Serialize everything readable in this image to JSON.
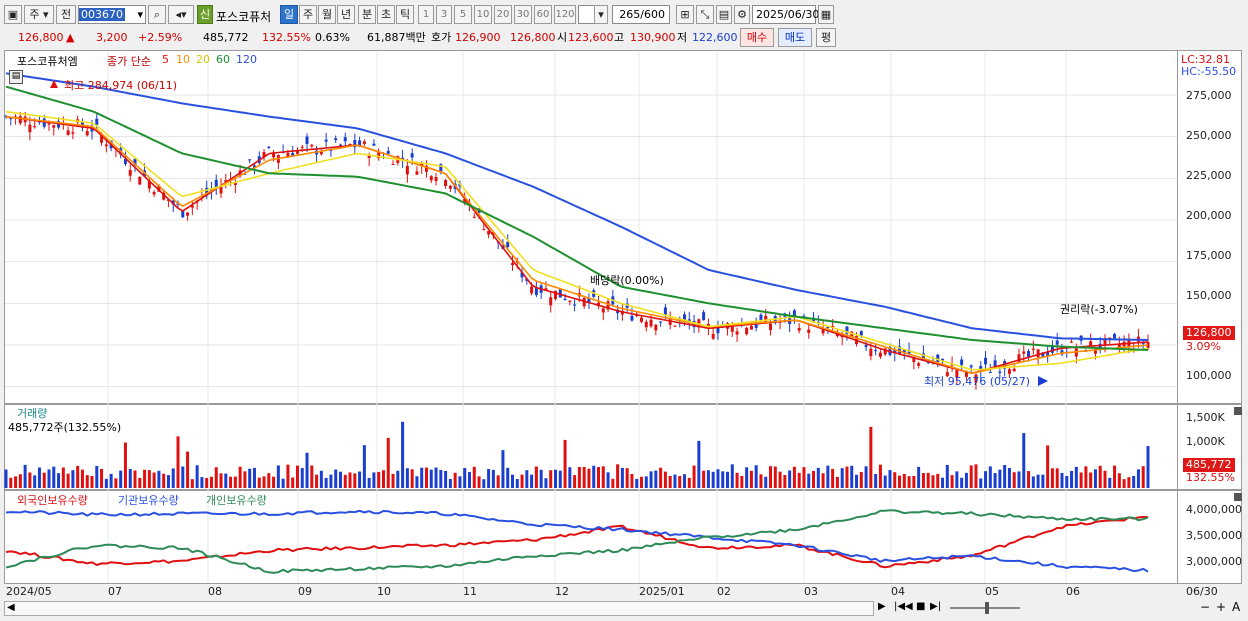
{
  "toolbar": {
    "period_buttons": [
      "주",
      "전"
    ],
    "code_value": "003670",
    "chart_type_badge": "신",
    "stock_name": "포스코퓨처",
    "interval_tabs": [
      "일",
      "주",
      "월",
      "년",
      "분",
      "초",
      "틱"
    ],
    "active_tab": "일",
    "minute_options": [
      "1",
      "3",
      "5",
      "10",
      "20",
      "30",
      "60",
      "120"
    ],
    "count_display": "265",
    "count_total": "/600",
    "date_value": "2025/06/30"
  },
  "quote": {
    "price": "126,800",
    "arrow": "▲",
    "change": "3,200",
    "change_pct": "+2.59%",
    "volume": "485,772",
    "volume_ratio": "132.55%",
    "turnover_pct": "0.63%",
    "amount": "61,887백만",
    "ask_label": "호가",
    "bid1": "126,900",
    "bid2": "126,800",
    "open_label": "시",
    "open": "123,600",
    "high_label": "고",
    "high": "130,900",
    "low_label": "저",
    "low": "122,600",
    "buy_btn": "매수",
    "sell_btn": "매도",
    "eval_btn": "평"
  },
  "main_chart": {
    "title": "포스코퓨처엠",
    "ma_label": "종가 단순",
    "ma_periods": [
      "5",
      "10",
      "20",
      "60",
      "120"
    ],
    "ma_colors": [
      "#e01010",
      "#ff8c00",
      "#f0e020",
      "#1e9030",
      "#2a50e0"
    ],
    "lc": "LC:32.81",
    "hc": "HC:-55.50",
    "high_annot": "최고 284,974 (06/11)",
    "low_annot": "최저 95,476 (05/27)",
    "div_annot": "배당락(0.00%)",
    "rights_annot": "권리락(-3.07%)",
    "price_tag": "126,800",
    "pct_tag": "3.09%"
  },
  "volume_panel": {
    "title": "거래량",
    "subtitle": "485,772주(132.55%)",
    "tag_value": "485,772",
    "tag_pct": "132.55%"
  },
  "holdings_panel": {
    "series_labels": [
      "외국인보유수량",
      "기관보유수량",
      "개인보유수량"
    ],
    "series_colors": [
      "#e01010",
      "#2a50e0",
      "#2e8b57"
    ]
  },
  "x_labels": [
    "2024/05",
    "07",
    "08",
    "09",
    "10",
    "11",
    "12",
    "2025/01",
    "02",
    "03",
    "04",
    "05",
    "06",
    "06/30"
  ],
  "chart_data": [
    {
      "type": "line",
      "title": "포스코퓨처엠",
      "x": [
        "2024/05",
        "07",
        "08",
        "09",
        "10",
        "11",
        "12",
        "2025/01",
        "02",
        "03",
        "04",
        "05",
        "06",
        "06/30"
      ],
      "y_ticks": [
        "275,000",
        "250,000",
        "225,000",
        "200,000",
        "175,000",
        "150,000",
        "100,000"
      ],
      "ylim": [
        92000,
        290000
      ],
      "series": [
        {
          "name": "5",
          "values": [
            262000,
            255000,
            205000,
            240000,
            245000,
            228000,
            160000,
            145000,
            135000,
            140000,
            122000,
            108000,
            123000,
            126800
          ]
        },
        {
          "name": "10",
          "values": [
            262000,
            256000,
            208000,
            236000,
            245000,
            228000,
            164000,
            147000,
            136000,
            140000,
            124000,
            108000,
            120000,
            125000
          ]
        },
        {
          "name": "20",
          "values": [
            265000,
            258000,
            214000,
            228000,
            240000,
            232000,
            170000,
            150000,
            136000,
            142000,
            126000,
            110000,
            114000,
            123000
          ]
        },
        {
          "name": "60",
          "values": [
            280000,
            265000,
            240000,
            228000,
            226000,
            216000,
            190000,
            160000,
            150000,
            142000,
            135000,
            128000,
            124000,
            122000
          ]
        },
        {
          "name": "120",
          "values": [
            288000,
            280000,
            270000,
            262000,
            255000,
            240000,
            220000,
            196000,
            170000,
            158000,
            148000,
            135000,
            129000,
            128000
          ]
        }
      ]
    },
    {
      "type": "bar",
      "title": "거래량",
      "y_ticks": [
        "1,500K",
        "1,000K"
      ],
      "ylim": [
        0,
        1800000
      ]
    },
    {
      "type": "line",
      "series": [
        {
          "name": "외국인보유수량"
        },
        {
          "name": "기관보유수량"
        },
        {
          "name": "개인보유수량"
        }
      ],
      "y_ticks": [
        "4,000,000",
        "3,500,000",
        "3,000,000"
      ],
      "ylim": [
        2600000,
        4200000
      ]
    }
  ]
}
